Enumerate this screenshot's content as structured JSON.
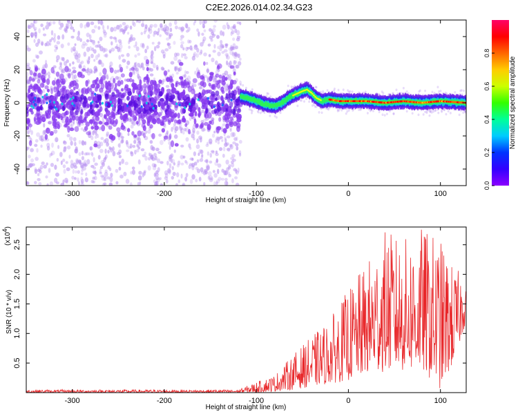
{
  "title": "C2E2.2026.014.02.34.G23",
  "colors": {
    "snr_line": "#e8272a",
    "frame": "#000000"
  },
  "chart_data": [
    {
      "type": "heatmap",
      "name": "spectrogram",
      "xlabel": "Height of straight line (km)",
      "ylabel": "Frequency (Hz)",
      "xlim": [
        -350,
        128
      ],
      "ylim": [
        -50,
        50
      ],
      "xticks": [
        -300,
        -200,
        -100,
        0,
        100
      ],
      "xtick_labels": [
        "-300",
        "-200",
        "-100",
        "0",
        "100"
      ],
      "yticks": [
        -40,
        -20,
        0,
        20,
        40
      ],
      "ytick_labels": [
        "-40",
        "-20",
        "0",
        "20",
        "40"
      ],
      "noisy_region_end_km": -117,
      "ridge_frequency_trace": [
        {
          "x": -120,
          "y": 4
        },
        {
          "x": -110,
          "y": 3
        },
        {
          "x": -100,
          "y": 1
        },
        {
          "x": -90,
          "y": -1
        },
        {
          "x": -80,
          "y": -2
        },
        {
          "x": -72,
          "y": 0
        },
        {
          "x": -65,
          "y": 3
        },
        {
          "x": -58,
          "y": 5
        },
        {
          "x": -50,
          "y": 7
        },
        {
          "x": -45,
          "y": 8
        },
        {
          "x": -40,
          "y": 6
        },
        {
          "x": -35,
          "y": 3
        },
        {
          "x": -28,
          "y": 1
        },
        {
          "x": -20,
          "y": 2
        },
        {
          "x": -10,
          "y": 1
        },
        {
          "x": 0,
          "y": 1
        },
        {
          "x": 20,
          "y": 1
        },
        {
          "x": 40,
          "y": 0
        },
        {
          "x": 60,
          "y": 1
        },
        {
          "x": 80,
          "y": 0
        },
        {
          "x": 100,
          "y": 1
        },
        {
          "x": 128,
          "y": 0
        }
      ],
      "colorbar": {
        "label": "Normalized spectral amplitude",
        "range": [
          0,
          1
        ],
        "ticks": [
          0.0,
          0.2,
          0.4,
          0.6,
          0.8
        ],
        "tick_labels": [
          "0.0",
          "0.2",
          "0.4",
          "0.6",
          "0.8"
        ],
        "colormap": [
          "#8c00ff",
          "#3300ff",
          "#0033ff",
          "#00ccff",
          "#00ff99",
          "#33ff00",
          "#ccff00",
          "#ffcc00",
          "#ff6600",
          "#ff0000",
          "#ff0066"
        ]
      }
    },
    {
      "type": "line",
      "name": "snr",
      "xlabel": "Height of straight line (km)",
      "ylabel": "SNR (10 * v/v)",
      "y_scale_label": "(x10",
      "y_scale_exponent": "4",
      "xlim": [
        -350,
        128
      ],
      "ylim": [
        0,
        2.8
      ],
      "xticks": [
        -300,
        -200,
        -100,
        0,
        100
      ],
      "xtick_labels": [
        "-300",
        "-200",
        "-100",
        "0",
        "100"
      ],
      "yticks": [
        0.5,
        1.0,
        1.5,
        2.0,
        2.5
      ],
      "ytick_labels": [
        "0.5",
        "1.0",
        "1.5",
        "2.0",
        "2.5"
      ],
      "envelope": [
        {
          "x": -350,
          "min": 0.0,
          "max": 0.05
        },
        {
          "x": -120,
          "min": 0.0,
          "max": 0.05
        },
        {
          "x": -100,
          "min": 0.0,
          "max": 0.18
        },
        {
          "x": -80,
          "min": 0.02,
          "max": 0.3
        },
        {
          "x": -60,
          "min": 0.05,
          "max": 0.65
        },
        {
          "x": -40,
          "min": 0.1,
          "max": 0.95
        },
        {
          "x": -20,
          "min": 0.15,
          "max": 1.25
        },
        {
          "x": 0,
          "min": 0.2,
          "max": 1.75
        },
        {
          "x": 20,
          "min": 0.3,
          "max": 2.2
        },
        {
          "x": 40,
          "min": 0.35,
          "max": 2.75
        },
        {
          "x": 60,
          "min": 0.35,
          "max": 2.6
        },
        {
          "x": 80,
          "min": 0.35,
          "max": 2.8
        },
        {
          "x": 100,
          "min": 0.05,
          "max": 2.6
        },
        {
          "x": 115,
          "min": 0.5,
          "max": 2.1
        },
        {
          "x": 128,
          "min": 1.2,
          "max": 2.0
        }
      ]
    }
  ]
}
